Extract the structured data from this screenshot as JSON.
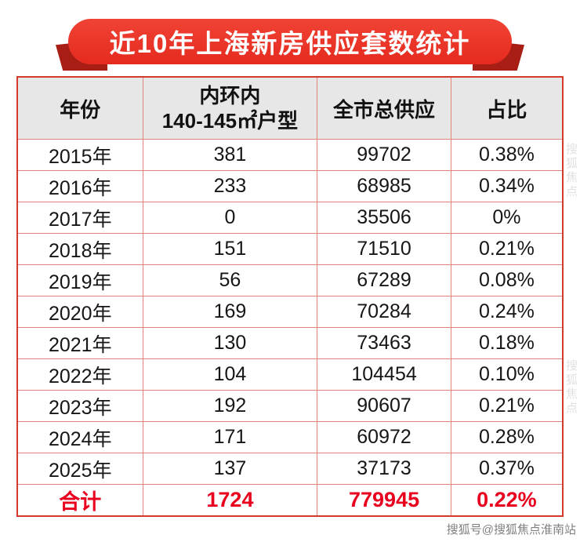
{
  "banner": {
    "title": "近10年上海新房供应套数统计"
  },
  "table": {
    "headers": {
      "year": "年份",
      "inner_line1": "内环内",
      "inner_line2": "140-145㎡户型",
      "city_total": "全市总供应",
      "share": "占比"
    }
  },
  "chart_data": {
    "type": "table",
    "title": "近10年上海新房供应套数统计",
    "columns": [
      "年份",
      "内环内140-145㎡户型",
      "全市总供应",
      "占比"
    ],
    "rows": [
      [
        "2015年",
        "381",
        "99702",
        "0.38%"
      ],
      [
        "2016年",
        "233",
        "68985",
        "0.34%"
      ],
      [
        "2017年",
        "0",
        "35506",
        "0%"
      ],
      [
        "2018年",
        "151",
        "71510",
        "0.21%"
      ],
      [
        "2019年",
        "56",
        "67289",
        "0.08%"
      ],
      [
        "2020年",
        "169",
        "70284",
        "0.24%"
      ],
      [
        "2021年",
        "130",
        "73463",
        "0.18%"
      ],
      [
        "2022年",
        "104",
        "104454",
        "0.10%"
      ],
      [
        "2023年",
        "192",
        "90607",
        "0.21%"
      ],
      [
        "2024年",
        "171",
        "60972",
        "0.28%"
      ],
      [
        "2025年",
        "137",
        "37173",
        "0.37%"
      ]
    ],
    "total_row": [
      "合计",
      "1724",
      "779945",
      "0.22%"
    ]
  },
  "watermark": {
    "bottom": "搜狐号@搜狐焦点淮南站",
    "side": "搜狐焦点"
  },
  "colors": {
    "banner_red": "#ea3327",
    "ribbon_dark_red": "#a81e14",
    "table_border_red": "#d63a2c",
    "grid_line_red": "#e2837a",
    "header_gray": "#e7e7e7",
    "total_text_red": "#e8001e"
  }
}
